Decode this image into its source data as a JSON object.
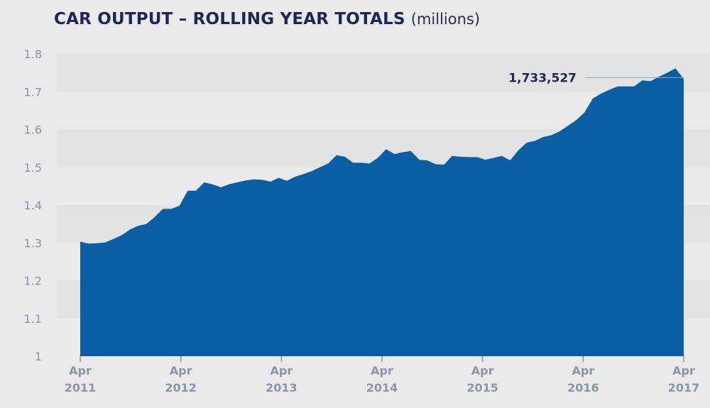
{
  "chart_data": {
    "type": "area",
    "title": "CAR OUTPUT – ROLLING YEAR TOTALS",
    "unit": "(millions)",
    "xlabel": "",
    "ylabel": "",
    "ylim": [
      1,
      1.8
    ],
    "yticks": [
      "1",
      "1.1",
      "1.2",
      "1.3",
      "1.4",
      "1.5",
      "1.6",
      "1.7",
      "1.8"
    ],
    "xticks": [
      {
        "month": "Apr",
        "year": "2011"
      },
      {
        "month": "Apr",
        "year": "2012"
      },
      {
        "month": "Apr",
        "year": "2013"
      },
      {
        "month": "Apr",
        "year": "2014"
      },
      {
        "month": "Apr",
        "year": "2015"
      },
      {
        "month": "Apr",
        "year": "2016"
      },
      {
        "month": "Apr",
        "year": "2017"
      }
    ],
    "series": [
      {
        "name": "Car output (rolling year total, millions)",
        "start": "Apr 2011",
        "values": [
          1.303,
          1.298,
          1.299,
          1.301,
          1.31,
          1.32,
          1.335,
          1.345,
          1.35,
          1.368,
          1.39,
          1.39,
          1.398,
          1.438,
          1.438,
          1.46,
          1.455,
          1.447,
          1.455,
          1.46,
          1.465,
          1.468,
          1.467,
          1.462,
          1.472,
          1.464,
          1.475,
          1.482,
          1.49,
          1.5,
          1.51,
          1.532,
          1.528,
          1.512,
          1.512,
          1.51,
          1.525,
          1.548,
          1.535,
          1.54,
          1.543,
          1.52,
          1.518,
          1.508,
          1.507,
          1.53,
          1.528,
          1.527,
          1.527,
          1.52,
          1.525,
          1.53,
          1.518,
          1.545,
          1.565,
          1.57,
          1.58,
          1.585,
          1.595,
          1.61,
          1.625,
          1.645,
          1.682,
          1.695,
          1.705,
          1.714,
          1.714,
          1.714,
          1.73,
          1.728,
          1.74,
          1.75,
          1.762,
          1.7335
        ]
      }
    ],
    "annotation": {
      "label": "1,733,527",
      "value": 1.733527
    },
    "colors": {
      "area": "#0a5ea4",
      "band": "#e3e3e3",
      "background": "#eaeaea",
      "title": "#1d2659",
      "tick": "#8f95a7"
    }
  }
}
